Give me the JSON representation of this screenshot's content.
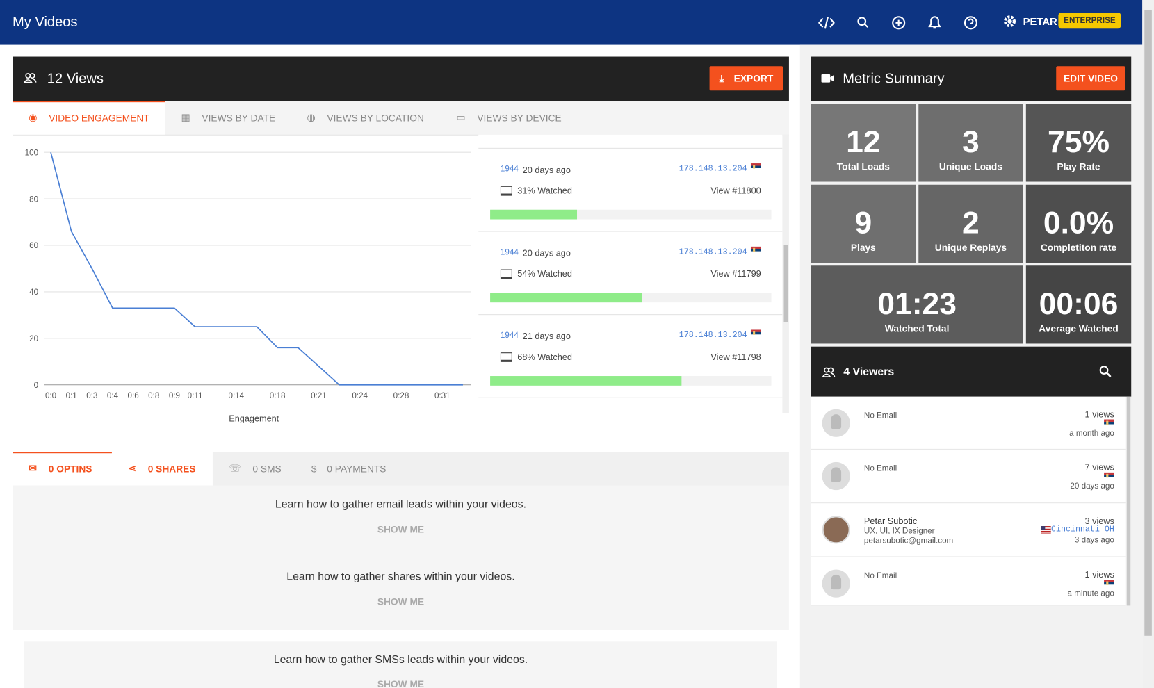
{
  "header": {
    "title": "My Videos",
    "user": "PETAR",
    "plan": "ENTERPRISE"
  },
  "views_panel": {
    "title": "12 Views",
    "export": "EXPORT",
    "tabs": [
      "VIDEO ENGAGEMENT",
      "VIEWS BY DATE",
      "VIEWS BY LOCATION",
      "VIEWS BY DEVICE"
    ]
  },
  "chart_data": {
    "type": "line",
    "xlabel": "Engagement",
    "categories": [
      "0:0",
      "0:1",
      "0:3",
      "0:4",
      "0:6",
      "0:8",
      "0:9",
      "0:11",
      null,
      "0:14",
      null,
      "0:18",
      null,
      "0:21",
      null,
      "0:24",
      null,
      "0:28",
      null,
      "0:31",
      null
    ],
    "series": [
      {
        "color": "#4a7fd4",
        "values": [
          100,
          66,
          50,
          33,
          33,
          33,
          33,
          25,
          25,
          25,
          25,
          16,
          16,
          8,
          0,
          0,
          0,
          0,
          0,
          0,
          0
        ]
      }
    ],
    "ylim": [
      0,
      100
    ],
    "yticks": [
      0,
      20,
      40,
      60,
      80,
      100
    ],
    "grid": true
  },
  "views": [
    {
      "id": "1944",
      "time": "20 days ago",
      "ip": "178.148.13.204",
      "watched": 31,
      "watched_label": "31% Watched",
      "view": "View #11800"
    },
    {
      "id": "1944",
      "time": "20 days ago",
      "ip": "178.148.13.204",
      "watched": 54,
      "watched_label": "54% Watched",
      "view": "View #11799"
    },
    {
      "id": "1944",
      "time": "21 days ago",
      "ip": "178.148.13.204",
      "watched": 68,
      "watched_label": "68% Watched",
      "view": "View #11798"
    }
  ],
  "engagement": {
    "tabs": [
      "0 OPTINS",
      "0 SHARES",
      "0 SMS",
      "0 PAYMENTS"
    ],
    "messages": [
      {
        "text": "Learn how to gather email leads within your videos.",
        "action": "SHOW ME"
      },
      {
        "text": "Learn how to gather shares within your videos.",
        "action": "SHOW ME"
      },
      {
        "text": "Learn how to gather SMSs leads within your videos.",
        "action": "SHOW ME"
      }
    ]
  },
  "metrics": {
    "title": "Metric Summary",
    "edit": "EDIT VIDEO",
    "tiles": [
      {
        "value": "12",
        "label": "Total Loads"
      },
      {
        "value": "3",
        "label": "Unique Loads"
      },
      {
        "value": "75%",
        "label": "Play Rate"
      },
      {
        "value": "9",
        "label": "Plays"
      },
      {
        "value": "2",
        "label": "Unique Replays"
      },
      {
        "value": "0.0%",
        "label": "Completiton rate"
      },
      {
        "value": "01:23",
        "label": "Watched Total"
      },
      {
        "value": "00:06",
        "label": "Average Watched"
      }
    ]
  },
  "viewers": {
    "title": "4 Viewers",
    "rows": [
      {
        "email": "No Email",
        "views": "1 views",
        "time": "a month ago"
      },
      {
        "email": "No Email",
        "views": "7 views",
        "time": "20 days ago"
      },
      {
        "name": "Petar Subotic",
        "role": "UX, UI, IX Designer",
        "email": "petarsubotic@gmail.com",
        "views": "3 views",
        "location": "Cincinnati OH",
        "time": "3 days ago"
      },
      {
        "email": "No Email",
        "views": "1 views",
        "time": "a minute ago"
      }
    ]
  }
}
